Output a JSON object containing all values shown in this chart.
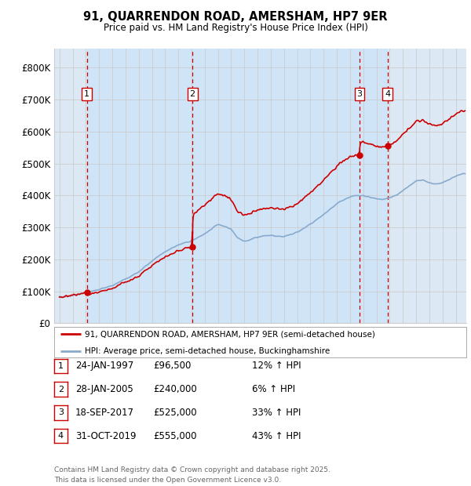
{
  "title_line1": "91, QUARRENDON ROAD, AMERSHAM, HP7 9ER",
  "title_line2": "Price paid vs. HM Land Registry's House Price Index (HPI)",
  "background_color": "#dce9f5",
  "plot_bg_color": "#dce9f5",
  "ylim": [
    0,
    860000
  ],
  "yticks": [
    0,
    100000,
    200000,
    300000,
    400000,
    500000,
    600000,
    700000,
    800000
  ],
  "ytick_labels": [
    "£0",
    "£100K",
    "£200K",
    "£300K",
    "£400K",
    "£500K",
    "£600K",
    "£700K",
    "£800K"
  ],
  "xlim_start": 1994.6,
  "xlim_end": 2025.8,
  "purchases": [
    {
      "date": 1997.07,
      "price": 96500,
      "label": "1"
    },
    {
      "date": 2005.07,
      "price": 240000,
      "label": "2"
    },
    {
      "date": 2017.72,
      "price": 525000,
      "label": "3"
    },
    {
      "date": 2019.83,
      "price": 555000,
      "label": "4"
    }
  ],
  "transaction_table": [
    {
      "num": "1",
      "date": "24-JAN-1997",
      "price": "£96,500",
      "hpi": "12% ↑ HPI"
    },
    {
      "num": "2",
      "date": "28-JAN-2005",
      "price": "£240,000",
      "hpi": "6% ↑ HPI"
    },
    {
      "num": "3",
      "date": "18-SEP-2017",
      "price": "£525,000",
      "hpi": "33% ↑ HPI"
    },
    {
      "num": "4",
      "date": "31-OCT-2019",
      "price": "£555,000",
      "hpi": "43% ↑ HPI"
    }
  ],
  "legend_line1": "91, QUARRENDON ROAD, AMERSHAM, HP7 9ER (semi-detached house)",
  "legend_line2": "HPI: Average price, semi-detached house, Buckinghamshire",
  "footer": "Contains HM Land Registry data © Crown copyright and database right 2025.\nThis data is licensed under the Open Government Licence v3.0.",
  "line_color_red": "#cc0000",
  "line_color_blue": "#88aacc",
  "highlight_color": "#d0e4f7",
  "marker_color": "#cc0000",
  "dashed_color": "#cc0000",
  "label_box_color": "#cc0000",
  "grid_color": "#cccccc",
  "white": "#ffffff"
}
